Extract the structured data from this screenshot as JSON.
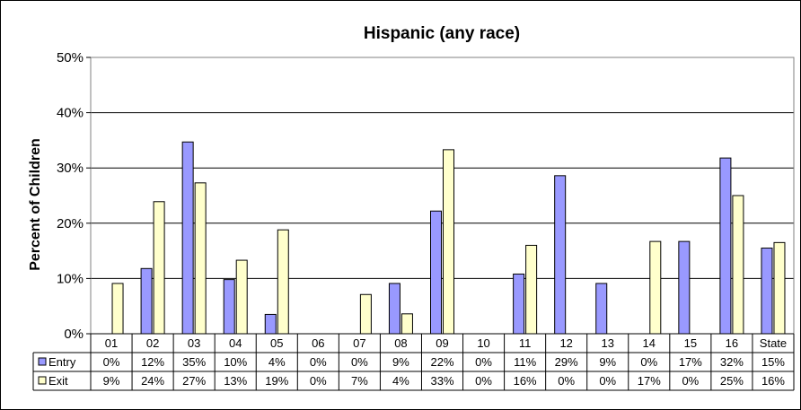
{
  "chart_data": {
    "type": "bar",
    "title": "Hispanic (any race)",
    "ylabel": "Percent of Children",
    "xlabel": "",
    "ylim": [
      0,
      50
    ],
    "yticks": [
      "0%",
      "10%",
      "20%",
      "30%",
      "40%",
      "50%"
    ],
    "categories": [
      "01",
      "02",
      "03",
      "04",
      "05",
      "06",
      "07",
      "08",
      "09",
      "10",
      "11",
      "12",
      "13",
      "14",
      "15",
      "16",
      "State"
    ],
    "series": [
      {
        "name": "Entry",
        "color": "#9999ff",
        "values": [
          0,
          11.8,
          34.7,
          9.8,
          3.5,
          0,
          0,
          9.1,
          22.2,
          0,
          10.8,
          28.6,
          9.1,
          0,
          16.7,
          31.8,
          15.5
        ],
        "labels": [
          "0%",
          "12%",
          "35%",
          "10%",
          "4%",
          "0%",
          "0%",
          "9%",
          "22%",
          "0%",
          "11%",
          "29%",
          "9%",
          "0%",
          "17%",
          "32%",
          "15%"
        ]
      },
      {
        "name": "Exit",
        "color": "#ffffcc",
        "values": [
          9.1,
          23.9,
          27.3,
          13.3,
          18.8,
          0,
          7.1,
          3.6,
          33.3,
          0,
          16.0,
          0,
          0,
          16.7,
          0,
          25.0,
          16.5
        ],
        "labels": [
          "9%",
          "24%",
          "27%",
          "13%",
          "19%",
          "0%",
          "7%",
          "4%",
          "33%",
          "0%",
          "16%",
          "0%",
          "0%",
          "17%",
          "0%",
          "25%",
          "16%"
        ]
      }
    ],
    "grid": true,
    "legend": "data-table"
  }
}
